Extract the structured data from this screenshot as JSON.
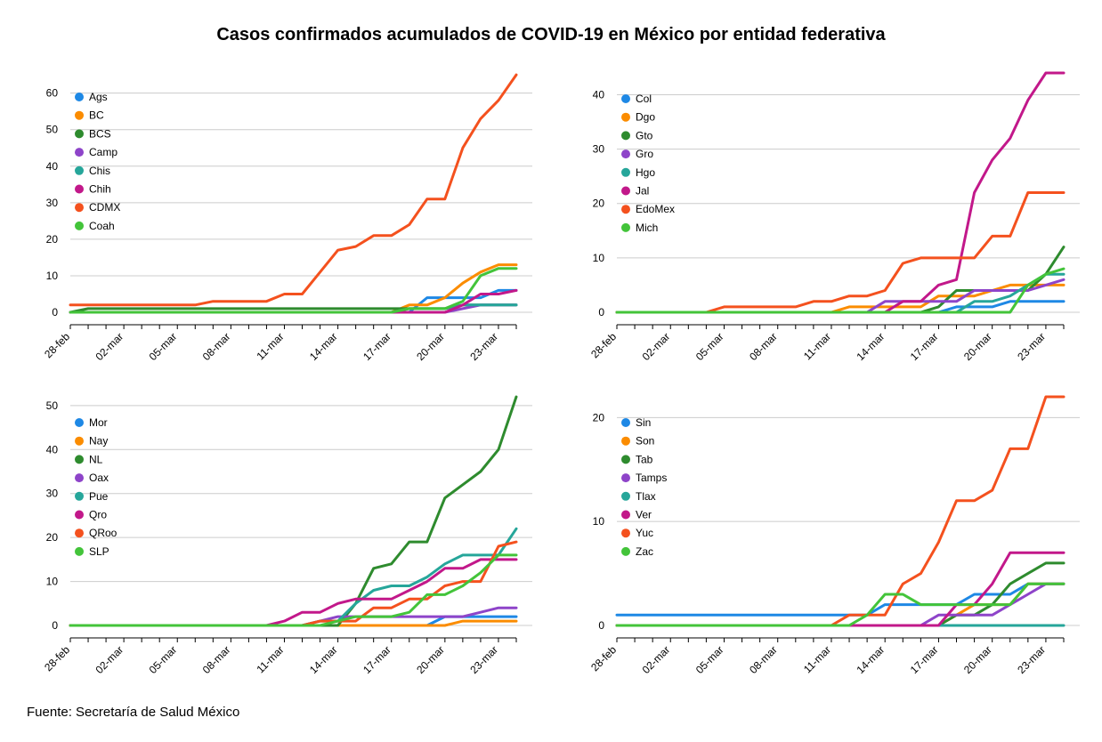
{
  "title": "Casos confirmados acumulados de COVID-19 en México por entidad federativa",
  "source": "Fuente: Secretaría de Salud México",
  "chart_data": [
    {
      "type": "line",
      "x": [
        "28-feb",
        "29-feb",
        "01-mar",
        "02-mar",
        "03-mar",
        "04-mar",
        "05-mar",
        "06-mar",
        "07-mar",
        "08-mar",
        "09-mar",
        "10-mar",
        "11-mar",
        "12-mar",
        "13-mar",
        "14-mar",
        "15-mar",
        "16-mar",
        "17-mar",
        "18-mar",
        "19-mar",
        "20-mar",
        "21-mar",
        "22-mar",
        "23-mar",
        "24-mar"
      ],
      "x_tick_labels": [
        "28-feb",
        "02-mar",
        "05-mar",
        "08-mar",
        "11-mar",
        "14-mar",
        "17-mar",
        "20-mar",
        "23-mar"
      ],
      "y_ticks": [
        0,
        10,
        20,
        30,
        40,
        50,
        60
      ],
      "ylim": [
        0,
        66
      ],
      "grid": true,
      "legend_position": "top-left",
      "series": [
        {
          "name": "Ags",
          "color": "#1e88e5",
          "values": [
            0,
            0,
            0,
            0,
            0,
            0,
            0,
            0,
            0,
            0,
            0,
            0,
            0,
            0,
            0,
            0,
            0,
            0,
            0,
            0,
            4,
            4,
            4,
            4,
            6,
            6
          ]
        },
        {
          "name": "BC",
          "color": "#fb8c00",
          "values": [
            0,
            0,
            0,
            0,
            0,
            0,
            0,
            0,
            0,
            0,
            0,
            0,
            0,
            0,
            0,
            0,
            0,
            0,
            0,
            2,
            2,
            4,
            8,
            11,
            13,
            13
          ]
        },
        {
          "name": "BCS",
          "color": "#2e8b2e",
          "values": [
            0,
            1,
            1,
            1,
            1,
            1,
            1,
            1,
            1,
            1,
            1,
            1,
            1,
            1,
            1,
            1,
            1,
            1,
            1,
            1,
            1,
            1,
            2,
            2,
            2,
            2
          ]
        },
        {
          "name": "Camp",
          "color": "#8e44c9",
          "values": [
            0,
            0,
            0,
            0,
            0,
            0,
            0,
            0,
            0,
            0,
            0,
            0,
            0,
            0,
            0,
            0,
            0,
            0,
            0,
            0,
            0,
            0,
            1,
            2,
            2,
            2
          ]
        },
        {
          "name": "Chis",
          "color": "#26a69a",
          "values": [
            0,
            0,
            0,
            0,
            0,
            0,
            0,
            0,
            0,
            0,
            0,
            0,
            0,
            0,
            0,
            0,
            0,
            0,
            0,
            1,
            1,
            1,
            2,
            2,
            2,
            2
          ]
        },
        {
          "name": "Chih",
          "color": "#c2188a",
          "values": [
            0,
            0,
            0,
            0,
            0,
            0,
            0,
            0,
            0,
            0,
            0,
            0,
            0,
            0,
            0,
            0,
            0,
            0,
            0,
            0,
            0,
            0,
            2,
            5,
            5,
            6
          ]
        },
        {
          "name": "CDMX",
          "color": "#f4511e",
          "values": [
            2,
            2,
            2,
            2,
            2,
            2,
            2,
            2,
            3,
            3,
            3,
            3,
            5,
            5,
            11,
            17,
            18,
            21,
            21,
            24,
            31,
            31,
            45,
            53,
            58,
            65
          ]
        },
        {
          "name": "Coah",
          "color": "#43c43a",
          "values": [
            0,
            0,
            0,
            0,
            0,
            0,
            0,
            0,
            0,
            0,
            0,
            0,
            0,
            0,
            0,
            0,
            0,
            0,
            0,
            1,
            1,
            1,
            3,
            10,
            12,
            12
          ]
        }
      ]
    },
    {
      "type": "line",
      "x": [
        "28-feb",
        "29-feb",
        "01-mar",
        "02-mar",
        "03-mar",
        "04-mar",
        "05-mar",
        "06-mar",
        "07-mar",
        "08-mar",
        "09-mar",
        "10-mar",
        "11-mar",
        "12-mar",
        "13-mar",
        "14-mar",
        "15-mar",
        "16-mar",
        "17-mar",
        "18-mar",
        "19-mar",
        "20-mar",
        "21-mar",
        "22-mar",
        "23-mar",
        "24-mar"
      ],
      "x_tick_labels": [
        "28-feb",
        "02-mar",
        "05-mar",
        "08-mar",
        "11-mar",
        "14-mar",
        "17-mar",
        "20-mar",
        "23-mar"
      ],
      "y_ticks": [
        0,
        10,
        20,
        30,
        40
      ],
      "ylim": [
        0,
        44
      ],
      "grid": true,
      "legend_position": "top-left",
      "series": [
        {
          "name": "Col",
          "color": "#1e88e5",
          "values": [
            0,
            0,
            0,
            0,
            0,
            0,
            0,
            0,
            0,
            0,
            0,
            0,
            0,
            0,
            0,
            0,
            0,
            0,
            0,
            1,
            1,
            1,
            2,
            2,
            2,
            2
          ]
        },
        {
          "name": "Dgo",
          "color": "#fb8c00",
          "values": [
            0,
            0,
            0,
            0,
            0,
            0,
            0,
            0,
            0,
            0,
            0,
            0,
            0,
            1,
            1,
            1,
            1,
            1,
            3,
            3,
            3,
            4,
            5,
            5,
            5,
            5
          ]
        },
        {
          "name": "Gto",
          "color": "#2e8b2e",
          "values": [
            0,
            0,
            0,
            0,
            0,
            0,
            0,
            0,
            0,
            0,
            0,
            0,
            0,
            0,
            0,
            0,
            0,
            0,
            1,
            4,
            4,
            4,
            4,
            4,
            7,
            12
          ]
        },
        {
          "name": "Gro",
          "color": "#8e44c9",
          "values": [
            0,
            0,
            0,
            0,
            0,
            0,
            0,
            0,
            0,
            0,
            0,
            0,
            0,
            0,
            0,
            2,
            2,
            2,
            2,
            2,
            4,
            4,
            4,
            4,
            5,
            6
          ]
        },
        {
          "name": "Hgo",
          "color": "#26a69a",
          "values": [
            0,
            0,
            0,
            0,
            0,
            0,
            0,
            0,
            0,
            0,
            0,
            0,
            0,
            0,
            0,
            0,
            0,
            0,
            0,
            0,
            2,
            2,
            3,
            5,
            7,
            7
          ]
        },
        {
          "name": "Jal",
          "color": "#c2188a",
          "values": [
            0,
            0,
            0,
            0,
            0,
            0,
            0,
            0,
            0,
            0,
            0,
            0,
            0,
            0,
            0,
            0,
            2,
            2,
            5,
            6,
            22,
            28,
            32,
            39,
            44,
            44
          ]
        },
        {
          "name": "EdoMex",
          "color": "#f4511e",
          "values": [
            0,
            0,
            0,
            0,
            0,
            0,
            1,
            1,
            1,
            1,
            1,
            2,
            2,
            3,
            3,
            4,
            9,
            10,
            10,
            10,
            10,
            14,
            14,
            22,
            22,
            22
          ]
        },
        {
          "name": "Mich",
          "color": "#43c43a",
          "values": [
            0,
            0,
            0,
            0,
            0,
            0,
            0,
            0,
            0,
            0,
            0,
            0,
            0,
            0,
            0,
            0,
            0,
            0,
            0,
            0,
            0,
            0,
            0,
            5,
            7,
            8
          ]
        }
      ]
    },
    {
      "type": "line",
      "x": [
        "28-feb",
        "29-feb",
        "01-mar",
        "02-mar",
        "03-mar",
        "04-mar",
        "05-mar",
        "06-mar",
        "07-mar",
        "08-mar",
        "09-mar",
        "10-mar",
        "11-mar",
        "12-mar",
        "13-mar",
        "14-mar",
        "15-mar",
        "16-mar",
        "17-mar",
        "18-mar",
        "19-mar",
        "20-mar",
        "21-mar",
        "22-mar",
        "23-mar",
        "24-mar"
      ],
      "x_tick_labels": [
        "28-feb",
        "02-mar",
        "05-mar",
        "08-mar",
        "11-mar",
        "14-mar",
        "17-mar",
        "20-mar",
        "23-mar"
      ],
      "y_ticks": [
        0,
        10,
        20,
        30,
        40,
        50
      ],
      "ylim": [
        0,
        52
      ],
      "grid": true,
      "legend_position": "top-left",
      "series": [
        {
          "name": "Mor",
          "color": "#1e88e5",
          "values": [
            0,
            0,
            0,
            0,
            0,
            0,
            0,
            0,
            0,
            0,
            0,
            0,
            0,
            0,
            0,
            0,
            0,
            0,
            0,
            0,
            0,
            2,
            2,
            2,
            2,
            2
          ]
        },
        {
          "name": "Nay",
          "color": "#fb8c00",
          "values": [
            0,
            0,
            0,
            0,
            0,
            0,
            0,
            0,
            0,
            0,
            0,
            0,
            0,
            0,
            0,
            0,
            0,
            0,
            0,
            0,
            0,
            0,
            1,
            1,
            1,
            1
          ]
        },
        {
          "name": "NL",
          "color": "#2e8b2e",
          "values": [
            0,
            0,
            0,
            0,
            0,
            0,
            0,
            0,
            0,
            0,
            0,
            0,
            0,
            0,
            0,
            0,
            5,
            13,
            14,
            19,
            19,
            29,
            32,
            35,
            40,
            52
          ]
        },
        {
          "name": "Oax",
          "color": "#8e44c9",
          "values": [
            0,
            0,
            0,
            0,
            0,
            0,
            0,
            0,
            0,
            0,
            0,
            0,
            0,
            0,
            1,
            2,
            2,
            2,
            2,
            2,
            2,
            2,
            2,
            3,
            4,
            4
          ]
        },
        {
          "name": "Pue",
          "color": "#26a69a",
          "values": [
            0,
            0,
            0,
            0,
            0,
            0,
            0,
            0,
            0,
            0,
            0,
            0,
            0,
            0,
            1,
            1,
            5,
            8,
            9,
            9,
            11,
            14,
            16,
            16,
            16,
            22
          ]
        },
        {
          "name": "Qro",
          "color": "#c2188a",
          "values": [
            0,
            0,
            0,
            0,
            0,
            0,
            0,
            0,
            0,
            0,
            0,
            0,
            1,
            3,
            3,
            5,
            6,
            6,
            6,
            8,
            10,
            13,
            13,
            15,
            15,
            15
          ]
        },
        {
          "name": "QRoo",
          "color": "#f4511e",
          "values": [
            0,
            0,
            0,
            0,
            0,
            0,
            0,
            0,
            0,
            0,
            0,
            0,
            0,
            0,
            1,
            1,
            1,
            4,
            4,
            6,
            6,
            9,
            10,
            10,
            18,
            19
          ]
        },
        {
          "name": "SLP",
          "color": "#43c43a",
          "values": [
            0,
            0,
            0,
            0,
            0,
            0,
            0,
            0,
            0,
            0,
            0,
            0,
            0,
            0,
            0,
            1,
            2,
            2,
            2,
            3,
            7,
            7,
            9,
            12,
            16,
            16
          ]
        }
      ]
    },
    {
      "type": "line",
      "x": [
        "28-feb",
        "29-feb",
        "01-mar",
        "02-mar",
        "03-mar",
        "04-mar",
        "05-mar",
        "06-mar",
        "07-mar",
        "08-mar",
        "09-mar",
        "10-mar",
        "11-mar",
        "12-mar",
        "13-mar",
        "14-mar",
        "15-mar",
        "16-mar",
        "17-mar",
        "18-mar",
        "19-mar",
        "20-mar",
        "21-mar",
        "22-mar",
        "23-mar",
        "24-mar"
      ],
      "x_tick_labels": [
        "28-feb",
        "02-mar",
        "05-mar",
        "08-mar",
        "11-mar",
        "14-mar",
        "17-mar",
        "20-mar",
        "23-mar"
      ],
      "y_ticks": [
        0,
        10,
        20
      ],
      "ylim": [
        0,
        22
      ],
      "grid": true,
      "legend_position": "top-left",
      "series": [
        {
          "name": "Sin",
          "color": "#1e88e5",
          "values": [
            1,
            1,
            1,
            1,
            1,
            1,
            1,
            1,
            1,
            1,
            1,
            1,
            1,
            1,
            1,
            2,
            2,
            2,
            2,
            2,
            3,
            3,
            3,
            4,
            4,
            4
          ]
        },
        {
          "name": "Son",
          "color": "#fb8c00",
          "values": [
            0,
            0,
            0,
            0,
            0,
            0,
            0,
            0,
            0,
            0,
            0,
            0,
            0,
            0,
            0,
            0,
            0,
            0,
            0,
            1,
            2,
            2,
            2,
            4,
            4,
            4
          ]
        },
        {
          "name": "Tab",
          "color": "#2e8b2e",
          "values": [
            0,
            0,
            0,
            0,
            0,
            0,
            0,
            0,
            0,
            0,
            0,
            0,
            0,
            0,
            0,
            0,
            0,
            0,
            0,
            1,
            1,
            2,
            4,
            5,
            6,
            6
          ]
        },
        {
          "name": "Tamps",
          "color": "#8e44c9",
          "values": [
            0,
            0,
            0,
            0,
            0,
            0,
            0,
            0,
            0,
            0,
            0,
            0,
            0,
            0,
            0,
            0,
            0,
            0,
            1,
            1,
            1,
            1,
            2,
            3,
            4,
            4
          ]
        },
        {
          "name": "Tlax",
          "color": "#26a69a",
          "values": [
            0,
            0,
            0,
            0,
            0,
            0,
            0,
            0,
            0,
            0,
            0,
            0,
            0,
            0,
            0,
            0,
            0,
            0,
            0,
            0,
            0,
            0,
            0,
            0,
            0,
            0
          ]
        },
        {
          "name": "Ver",
          "color": "#c2188a",
          "values": [
            0,
            0,
            0,
            0,
            0,
            0,
            0,
            0,
            0,
            0,
            0,
            0,
            0,
            0,
            0,
            0,
            0,
            0,
            0,
            2,
            2,
            4,
            7,
            7,
            7,
            7
          ]
        },
        {
          "name": "Yuc",
          "color": "#f4511e",
          "values": [
            0,
            0,
            0,
            0,
            0,
            0,
            0,
            0,
            0,
            0,
            0,
            0,
            0,
            1,
            1,
            1,
            4,
            5,
            8,
            12,
            12,
            13,
            17,
            17,
            22,
            22
          ]
        },
        {
          "name": "Zac",
          "color": "#43c43a",
          "values": [
            0,
            0,
            0,
            0,
            0,
            0,
            0,
            0,
            0,
            0,
            0,
            0,
            0,
            0,
            1,
            3,
            3,
            2,
            2,
            2,
            2,
            2,
            2,
            4,
            4,
            4
          ]
        }
      ]
    }
  ]
}
